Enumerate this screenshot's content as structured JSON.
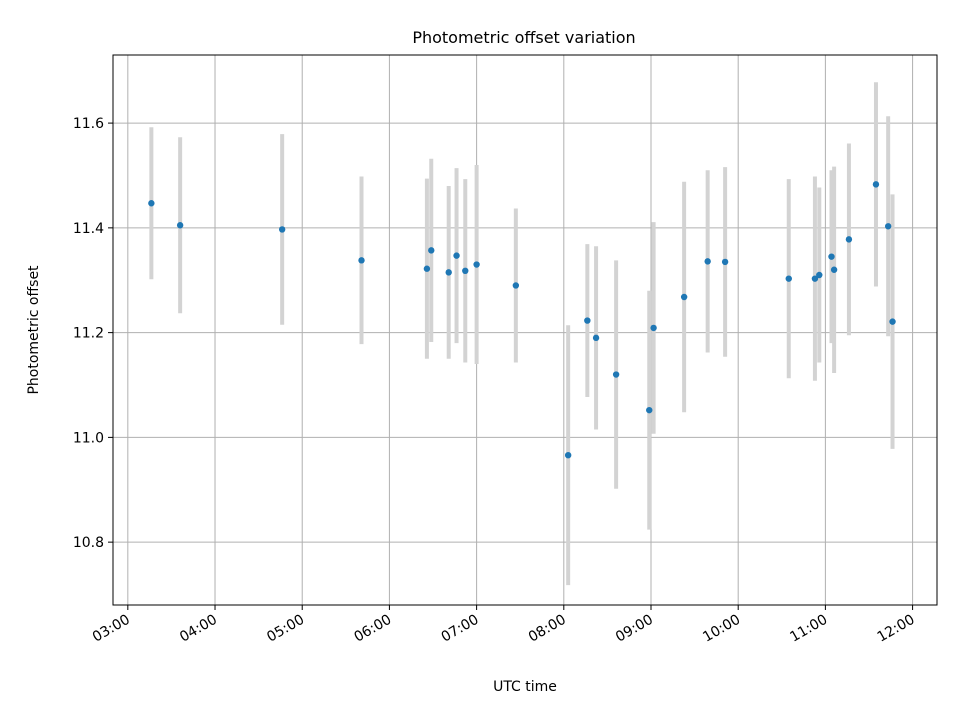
{
  "chart_data": {
    "type": "scatter",
    "title": "Photometric offset variation",
    "xlabel": "UTC time",
    "ylabel": "Photometric offset",
    "x_unit": "hours UTC",
    "xlim": [
      2.83,
      12.28
    ],
    "ylim": [
      10.68,
      11.73
    ],
    "x_ticks": [
      {
        "value": 3,
        "label": "03:00"
      },
      {
        "value": 4,
        "label": "04:00"
      },
      {
        "value": 5,
        "label": "05:00"
      },
      {
        "value": 6,
        "label": "06:00"
      },
      {
        "value": 7,
        "label": "07:00"
      },
      {
        "value": 8,
        "label": "08:00"
      },
      {
        "value": 9,
        "label": "09:00"
      },
      {
        "value": 10,
        "label": "10:00"
      },
      {
        "value": 11,
        "label": "11:00"
      },
      {
        "value": 12,
        "label": "12:00"
      }
    ],
    "y_ticks": [
      {
        "value": 10.8,
        "label": "10.8"
      },
      {
        "value": 11.0,
        "label": "11.0"
      },
      {
        "value": 11.2,
        "label": "11.2"
      },
      {
        "value": 11.4,
        "label": "11.4"
      },
      {
        "value": 11.6,
        "label": "11.6"
      }
    ],
    "grid": true,
    "point_color": "#1f77b4",
    "errorbar_color": "#d3d3d3",
    "points": [
      {
        "x": 3.27,
        "y": 11.447,
        "yerr": 0.145
      },
      {
        "x": 3.6,
        "y": 11.405,
        "yerr": 0.168
      },
      {
        "x": 4.77,
        "y": 11.397,
        "yerr": 0.182
      },
      {
        "x": 5.68,
        "y": 11.338,
        "yerr": 0.16
      },
      {
        "x": 6.43,
        "y": 11.322,
        "yerr": 0.172
      },
      {
        "x": 6.48,
        "y": 11.357,
        "yerr": 0.175
      },
      {
        "x": 6.68,
        "y": 11.315,
        "yerr": 0.165
      },
      {
        "x": 6.77,
        "y": 11.347,
        "yerr": 0.167
      },
      {
        "x": 6.87,
        "y": 11.318,
        "yerr": 0.175
      },
      {
        "x": 7.0,
        "y": 11.33,
        "yerr": 0.19
      },
      {
        "x": 7.45,
        "y": 11.29,
        "yerr": 0.147
      },
      {
        "x": 8.05,
        "y": 10.966,
        "yerr": 0.248
      },
      {
        "x": 8.27,
        "y": 11.223,
        "yerr": 0.146
      },
      {
        "x": 8.37,
        "y": 11.19,
        "yerr": 0.175
      },
      {
        "x": 8.6,
        "y": 11.12,
        "yerr": 0.218
      },
      {
        "x": 8.98,
        "y": 11.052,
        "yerr": 0.228
      },
      {
        "x": 9.03,
        "y": 11.209,
        "yerr": 0.202
      },
      {
        "x": 9.38,
        "y": 11.268,
        "yerr": 0.22
      },
      {
        "x": 9.65,
        "y": 11.336,
        "yerr": 0.174
      },
      {
        "x": 9.85,
        "y": 11.335,
        "yerr": 0.181
      },
      {
        "x": 10.58,
        "y": 11.303,
        "yerr": 0.19
      },
      {
        "x": 10.88,
        "y": 11.303,
        "yerr": 0.195
      },
      {
        "x": 10.93,
        "y": 11.31,
        "yerr": 0.167
      },
      {
        "x": 11.07,
        "y": 11.345,
        "yerr": 0.165
      },
      {
        "x": 11.1,
        "y": 11.32,
        "yerr": 0.197
      },
      {
        "x": 11.27,
        "y": 11.378,
        "yerr": 0.183
      },
      {
        "x": 11.58,
        "y": 11.483,
        "yerr": 0.195
      },
      {
        "x": 11.72,
        "y": 11.403,
        "yerr": 0.21
      },
      {
        "x": 11.77,
        "y": 11.221,
        "yerr": 0.243
      }
    ]
  }
}
